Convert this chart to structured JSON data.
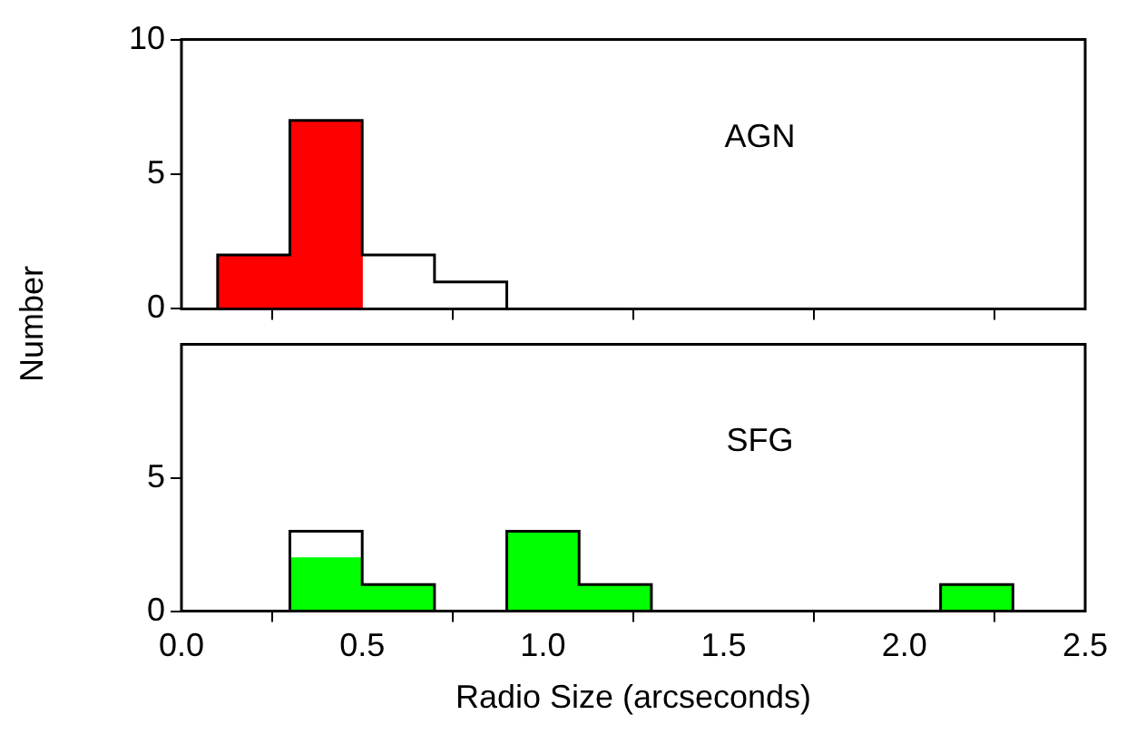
{
  "chart_data": [
    {
      "type": "histogram",
      "annotations": [
        "AGN"
      ],
      "ylabel": "Number",
      "bins": [
        0.1,
        0.3,
        0.5,
        0.7,
        0.9,
        1.1,
        1.3,
        1.5,
        1.7,
        1.9,
        2.1,
        2.3
      ],
      "xlim": [
        0,
        2.5
      ],
      "xticks": [
        0,
        0.5,
        1,
        1.5,
        2,
        2.5
      ],
      "ylim": [
        0,
        10
      ],
      "yticks": [
        0,
        5,
        10
      ],
      "tick_labels": "y",
      "series": [
        {
          "type": "step",
          "color": "#000000",
          "x": [
            0.1,
            0.1,
            0.3,
            0.5,
            0.7,
            0.9
          ],
          "values": [
            0,
            2,
            7,
            2,
            1,
            0
          ]
        },
        {
          "color": "#ff0000",
          "values": [
            2,
            7,
            0,
            0,
            0,
            0,
            0,
            0,
            0,
            0,
            0
          ]
        }
      ]
    },
    {
      "type": "histogram",
      "annotations": [
        "SFG"
      ],
      "xlabel": "Radio Size (arcseconds)",
      "bins": [
        0.1,
        0.3,
        0.5,
        0.7,
        0.9,
        1.1,
        1.3,
        1.5,
        1.7,
        1.9,
        2.1,
        2.3
      ],
      "xlim": [
        0,
        2.5
      ],
      "xticks": [
        {
          "value": 0,
          "label": "0.0"
        },
        0.5,
        {
          "value": 1,
          "label": "1.0"
        },
        1.5,
        {
          "value": 2,
          "label": "2.0"
        },
        2.5
      ],
      "ylim": [
        0,
        10
      ],
      "yticks": [
        0,
        5
      ],
      "series": [
        {
          "type": "step",
          "color": "#000000",
          "x": [
            0.3,
            0.3,
            0.5,
            0.7,
            0.9,
            1.1,
            1.3,
            2.1,
            2.3
          ],
          "values": [
            0,
            3,
            1,
            0,
            3,
            1,
            0,
            1,
            0
          ]
        },
        {
          "color": "#00ff00",
          "values": [
            0,
            2,
            1,
            0,
            3,
            1,
            0,
            0,
            0,
            0,
            1
          ]
        }
      ]
    }
  ]
}
